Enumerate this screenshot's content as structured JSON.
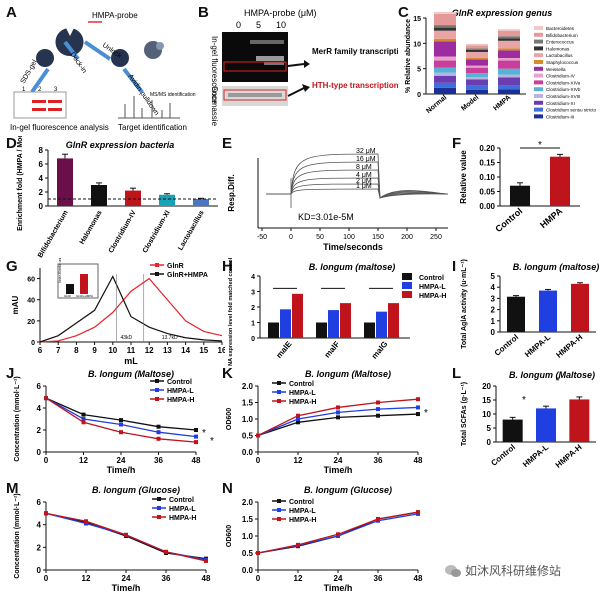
{
  "panels": {
    "A": {
      "letter": "A",
      "probe": "HMPA-probe",
      "steps": [
        "Dock-in",
        "Unlock",
        "SDS-gel",
        "Avidin pulldown"
      ],
      "lane_nums": [
        "1",
        "2",
        "3"
      ],
      "ms_label": "MS/MS identification",
      "caption_left": "In-gel fluorescence analysis",
      "caption_right": "Target identification"
    },
    "B": {
      "letter": "B",
      "title": "HMPA-probe (μM)",
      "concs": [
        "0",
        "5",
        "10"
      ],
      "side1": "In-gel fluorescence",
      "side2": "Coomassie",
      "ann1": "MerR family transcriptional regulator",
      "ann2": "HTH-type transcriptional regulator GlnR"
    },
    "C": {
      "letter": "C",
      "title": "GlnR expression genus",
      "ylabel": "% Relative abundance",
      "yticks": [
        "0",
        "5",
        "10",
        "15"
      ],
      "groups": [
        "Normal",
        "Model",
        "HMPA"
      ],
      "legend": [
        "Bacteroidetes",
        "Bifidobacterium",
        "Enterococcus",
        "Halomonas",
        "Lactobacillus",
        "Staphylococcus",
        "Weissella",
        "Clostridium-IV",
        "Clostridium-XIVa",
        "Clostridium-XIVb",
        "Clostridium-XVIII",
        "Clostridium-XI",
        "Clostridium sensu stricto",
        "Clostridium-III"
      ]
    },
    "D": {
      "letter": "D",
      "title": "GlnR expression bacteria",
      "ylabel": "Enrichment fold (HMPA / Model)",
      "yticks": [
        "0",
        "2",
        "4",
        "6",
        "8"
      ]
    },
    "E": {
      "letter": "E",
      "ylabel": "Resp.Diff.",
      "xlabel": "Time/seconds",
      "kd": "KD=3.01e-5M",
      "xticks": [
        "-50",
        "0",
        "50",
        "100",
        "150",
        "200",
        "250"
      ],
      "concs": [
        "32 μM",
        "16 μM",
        "8 μM",
        "4 μM",
        "2 μM",
        "1 μM"
      ]
    },
    "F": {
      "letter": "F",
      "ylabel": "Relative value",
      "yticks": [
        "0.00",
        "0.05",
        "0.10",
        "0.15",
        "0.20"
      ],
      "star": "*"
    },
    "G": {
      "letter": "G",
      "ylabel": "mAU",
      "xlabel": "mL",
      "xticks": [
        "6",
        "7",
        "8",
        "9",
        "10",
        "11",
        "12",
        "13",
        "14",
        "15",
        "16"
      ],
      "yticks": [
        "0",
        "20",
        "40",
        "60"
      ],
      "legend": [
        "GlnR",
        "GlnR+HMPA"
      ],
      "marks": [
        "43kD",
        "13.7kD"
      ],
      "inset_ylabel": "Inner-Kinetic units",
      "inset_cats": [
        "GlnR",
        "GlnR+HMPA"
      ]
    },
    "H": {
      "letter": "H",
      "title": "B. longum (maltose)",
      "ylabel": "mRNA expression level fold matched control values",
      "yticks": [
        "0",
        "1",
        "2",
        "3",
        "4"
      ],
      "legend": [
        "Control",
        "HMPA-L",
        "HMPA-H"
      ]
    },
    "I": {
      "letter": "I",
      "title": "B. longum (maltose)",
      "ylabel": "Total AglA activity (u·mL⁻¹)",
      "yticks": [
        "0",
        "1",
        "2",
        "3",
        "4",
        "5"
      ],
      "star": "*"
    },
    "J": {
      "letter": "J",
      "title": "B. longum (Maltose)",
      "ylabel": "Concentration (mmol·L⁻¹)",
      "xlabel": "Time/h",
      "xticks": [
        "0",
        "12",
        "24",
        "36",
        "48"
      ],
      "yticks": [
        "0",
        "2",
        "4",
        "6"
      ],
      "legend": [
        "Control",
        "HMPA-L",
        "HMPA-H"
      ]
    },
    "K": {
      "letter": "K",
      "title": "B. longum (Maltose)",
      "ylabel": "OD600",
      "xlabel": "Time/h",
      "xticks": [
        "0",
        "12",
        "24",
        "36",
        "48"
      ],
      "yticks": [
        "0.0",
        "0.5",
        "1.0",
        "1.5",
        "2.0"
      ],
      "legend": [
        "Control",
        "HMPA-L",
        "HMPA-H"
      ]
    },
    "L": {
      "letter": "L",
      "title": "B. longum (Maltose)",
      "ylabel": "Total SCFAs (g·L⁻¹)",
      "yticks": [
        "0",
        "5",
        "10",
        "15",
        "20"
      ],
      "star": "*"
    },
    "M": {
      "letter": "M",
      "title": "B. longum (Glucose)",
      "ylabel": "Concentration (mmol·L⁻¹)",
      "xlabel": "Time/h",
      "xticks": [
        "0",
        "12",
        "24",
        "36",
        "48"
      ],
      "yticks": [
        "0",
        "2",
        "4",
        "6"
      ],
      "legend": [
        "Control",
        "HMPA-L",
        "HMPA-H"
      ]
    },
    "N": {
      "letter": "N",
      "title": "B. longum (Glucose)",
      "ylabel": "OD600",
      "xlabel": "Time/h",
      "xticks": [
        "0",
        "12",
        "24",
        "36",
        "48"
      ],
      "yticks": [
        "0.0",
        "0.5",
        "1.0",
        "1.5",
        "2.0"
      ],
      "legend": [
        "Control",
        "HMPA-L",
        "HMPA-H"
      ]
    }
  },
  "watermark": "如沐风科研维修站",
  "colors": {
    "control": "#111111",
    "low": "#1f3fe0",
    "high": "#c0141c"
  },
  "chart_data": [
    {
      "id": "C",
      "type": "bar",
      "categories": [
        "Normal",
        "Model",
        "HMPA"
      ],
      "series": [
        {
          "name": "Clostridium-III",
          "values": [
            1.2,
            0.8,
            0.9
          ],
          "color": "#1a2f9a"
        },
        {
          "name": "Clostridium sensu stricto",
          "values": [
            1.0,
            0.9,
            0.8
          ],
          "color": "#3d6fd6"
        },
        {
          "name": "Clostridium-XI",
          "values": [
            1.4,
            1.2,
            1.6
          ],
          "color": "#6a3db3"
        },
        {
          "name": "Clostridium-XVIII",
          "values": [
            0.6,
            0.4,
            0.5
          ],
          "color": "#bbb3de"
        },
        {
          "name": "Clostridium-XIVb",
          "values": [
            1.0,
            0.8,
            1.2
          ],
          "color": "#58b2d6"
        },
        {
          "name": "Clostridium-XIVa",
          "values": [
            1.4,
            1.1,
            1.6
          ],
          "color": "#c93e9a"
        },
        {
          "name": "Clostridium-IV",
          "values": [
            0.8,
            0.4,
            0.5
          ],
          "color": "#e7a3cc"
        },
        {
          "name": "Weissella",
          "values": [
            3.0,
            1.2,
            1.5
          ],
          "color": "#9c2ca0"
        },
        {
          "name": "Staphylococcus",
          "values": [
            0.5,
            0.3,
            0.4
          ],
          "color": "#d58a2b"
        },
        {
          "name": "Lactobacillus",
          "values": [
            1.6,
            1.2,
            1.5
          ],
          "color": "#e9a5a5"
        },
        {
          "name": "Halomonas",
          "values": [
            0.6,
            0.4,
            0.5
          ],
          "color": "#333333"
        },
        {
          "name": "Enterococcus",
          "values": [
            0.5,
            0.3,
            0.4
          ],
          "color": "#777777"
        },
        {
          "name": "Bifidobacterium",
          "values": [
            2.2,
            0.6,
            1.1
          ],
          "color": "#e59999"
        },
        {
          "name": "Bacteroidetes",
          "values": [
            0.4,
            0.3,
            0.3
          ],
          "color": "#f2c9c9"
        }
      ],
      "ylim": [
        0,
        15
      ]
    },
    {
      "id": "D",
      "type": "bar",
      "categories": [
        "Bifidobacterium",
        "Halomonas",
        "Clostridium-IV",
        "Clostridium-XI",
        "Lactobacillus"
      ],
      "values": [
        6.8,
        3.0,
        2.2,
        1.6,
        1.0
      ],
      "errors": [
        0.6,
        0.3,
        0.35,
        0.15,
        0.1
      ],
      "colors": [
        "#6a0f4a",
        "#111111",
        "#c0141c",
        "#17a2b8",
        "#4a76c8"
      ],
      "ylim": [
        0,
        8
      ],
      "reference": 1
    },
    {
      "id": "F",
      "type": "bar",
      "categories": [
        "Control",
        "HMPA"
      ],
      "values": [
        0.07,
        0.17
      ],
      "errors": [
        0.01,
        0.008
      ],
      "colors": [
        "#111111",
        "#c0141c"
      ],
      "ylim": [
        0,
        0.2
      ]
    },
    {
      "id": "H",
      "type": "bar",
      "categories": [
        "malE",
        "malF",
        "malG"
      ],
      "series": [
        {
          "name": "Control",
          "values": [
            1.0,
            1.0,
            1.0
          ]
        },
        {
          "name": "HMPA-L",
          "values": [
            1.85,
            1.8,
            1.7
          ]
        },
        {
          "name": "HMPA-H",
          "values": [
            2.85,
            2.25,
            2.25
          ]
        }
      ],
      "ylim": [
        0,
        4
      ]
    },
    {
      "id": "I",
      "type": "bar",
      "categories": [
        "Control",
        "HMPA-L",
        "HMPA-H"
      ],
      "values": [
        3.15,
        3.7,
        4.3
      ],
      "errors": [
        0.1,
        0.1,
        0.1
      ],
      "ylim": [
        0,
        5
      ]
    },
    {
      "id": "J",
      "type": "line",
      "x": [
        0,
        12,
        24,
        36,
        48
      ],
      "series": [
        {
          "name": "Control",
          "values": [
            4.9,
            3.4,
            2.9,
            2.3,
            2.0
          ]
        },
        {
          "name": "HMPA-L",
          "values": [
            4.9,
            3.0,
            2.5,
            1.8,
            1.4
          ]
        },
        {
          "name": "HMPA-H",
          "values": [
            4.9,
            2.7,
            1.8,
            1.2,
            0.9
          ]
        }
      ],
      "ylim": [
        0,
        6
      ]
    },
    {
      "id": "K",
      "type": "line",
      "x": [
        0,
        12,
        24,
        36,
        48
      ],
      "series": [
        {
          "name": "Control",
          "values": [
            0.5,
            0.9,
            1.05,
            1.1,
            1.15
          ]
        },
        {
          "name": "HMPA-L",
          "values": [
            0.5,
            1.0,
            1.2,
            1.3,
            1.35
          ]
        },
        {
          "name": "HMPA-H",
          "values": [
            0.5,
            1.1,
            1.35,
            1.5,
            1.6
          ]
        }
      ],
      "ylim": [
        0,
        2
      ]
    },
    {
      "id": "L",
      "type": "bar",
      "categories": [
        "Control",
        "HMPA-L",
        "HMPA-H"
      ],
      "values": [
        8.0,
        12.0,
        15.2
      ],
      "errors": [
        0.8,
        0.8,
        0.9
      ],
      "ylim": [
        0,
        20
      ]
    },
    {
      "id": "M",
      "type": "line",
      "x": [
        0,
        12,
        24,
        36,
        48
      ],
      "series": [
        {
          "name": "Control",
          "values": [
            5.0,
            4.2,
            3.0,
            1.5,
            1.0
          ]
        },
        {
          "name": "HMPA-L",
          "values": [
            5.0,
            4.1,
            3.1,
            1.6,
            0.9
          ]
        },
        {
          "name": "HMPA-H",
          "values": [
            5.0,
            4.3,
            3.1,
            1.6,
            0.8
          ]
        }
      ],
      "ylim": [
        0,
        6
      ]
    },
    {
      "id": "N",
      "type": "line",
      "x": [
        0,
        12,
        24,
        36,
        48
      ],
      "series": [
        {
          "name": "Control",
          "values": [
            0.5,
            0.7,
            1.0,
            1.5,
            1.7
          ]
        },
        {
          "name": "HMPA-L",
          "values": [
            0.5,
            0.72,
            1.0,
            1.45,
            1.65
          ]
        },
        {
          "name": "HMPA-H",
          "values": [
            0.5,
            0.74,
            1.05,
            1.5,
            1.7
          ]
        }
      ],
      "ylim": [
        0,
        2
      ]
    },
    {
      "id": "G",
      "type": "line",
      "x": [
        6,
        7,
        8,
        9,
        10,
        11,
        12,
        13,
        14,
        15,
        16
      ],
      "series": [
        {
          "name": "GlnR",
          "values": [
            0,
            1,
            6,
            14,
            28,
            48,
            60,
            40,
            20,
            10,
            6
          ]
        },
        {
          "name": "GlnR+HMPA",
          "values": [
            0,
            6,
            18,
            30,
            62,
            24,
            14,
            8,
            4,
            2,
            1
          ]
        }
      ],
      "ylim": [
        0,
        70
      ]
    }
  ]
}
